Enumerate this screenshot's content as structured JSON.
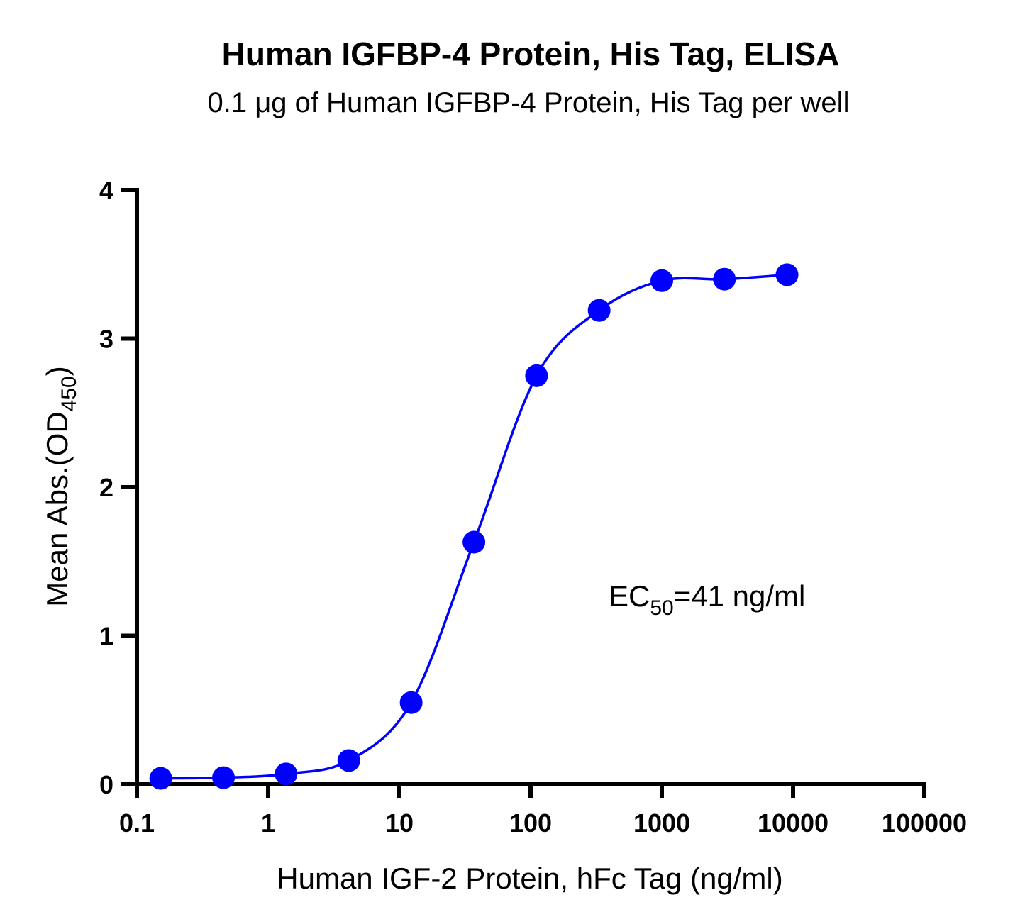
{
  "chart_data": {
    "type": "scatter",
    "title": "Human IGFBP-4 Protein, His Tag, ELISA",
    "subtitle": "0.1 μg of Human IGFBP-4 Protein, His Tag per well",
    "xlabel": "Human IGF-2 Protein, hFc Tag (ng/ml)",
    "ylabel": {
      "main": "Mean Abs.(OD",
      "sub": "450",
      "close": ")"
    },
    "x_scale": "log",
    "xlim": [
      0.1,
      100000
    ],
    "ylim": [
      0,
      4
    ],
    "x_ticks": [
      {
        "value": 0.1,
        "label": "0.1"
      },
      {
        "value": 1,
        "label": "1"
      },
      {
        "value": 10,
        "label": "10"
      },
      {
        "value": 100,
        "label": "100"
      },
      {
        "value": 1000,
        "label": "1000"
      },
      {
        "value": 10000,
        "label": "10000"
      },
      {
        "value": 100000,
        "label": "100000"
      }
    ],
    "y_ticks": [
      {
        "value": 0,
        "label": "0"
      },
      {
        "value": 1,
        "label": "1"
      },
      {
        "value": 2,
        "label": "2"
      },
      {
        "value": 3,
        "label": "3"
      },
      {
        "value": 4,
        "label": "4"
      }
    ],
    "grid": false,
    "series": [
      {
        "color": "#0000ff",
        "x": [
          0.152,
          0.457,
          1.37,
          4.12,
          12.3,
          37.0,
          111,
          333,
          1000,
          3000,
          9000
        ],
        "y": [
          0.04,
          0.045,
          0.07,
          0.16,
          0.55,
          1.63,
          2.75,
          3.19,
          3.39,
          3.4,
          3.43
        ]
      }
    ],
    "annotation": {
      "prefix": "EC",
      "sub": "50",
      "suffix": "=41 ng/ml"
    }
  }
}
